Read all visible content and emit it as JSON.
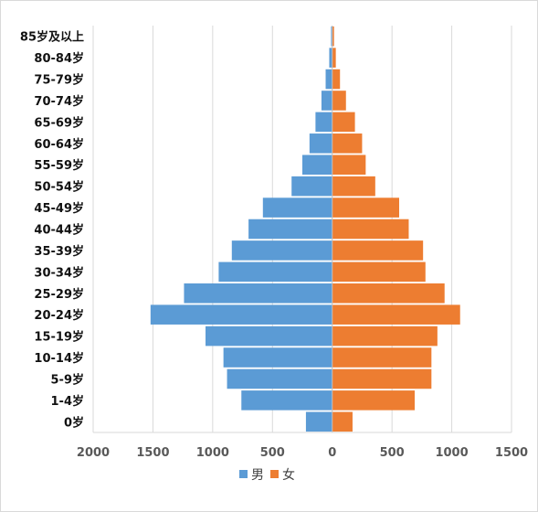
{
  "chart_data": {
    "type": "bar",
    "orientation": "horizontal",
    "categories": [
      "0岁",
      "1-4岁",
      "5-9岁",
      "10-14岁",
      "15-19岁",
      "20-24岁",
      "25-29岁",
      "30-34岁",
      "35-39岁",
      "40-44岁",
      "45-49岁",
      "50-54岁",
      "55-59岁",
      "60-64岁",
      "65-69岁",
      "70-74岁",
      "75-79岁",
      "80-84岁",
      "85岁及以上"
    ],
    "series": [
      {
        "name": "男",
        "color": "#5b9bd5",
        "values": [
          220,
          760,
          880,
          910,
          1060,
          1520,
          1240,
          950,
          840,
          700,
          580,
          340,
          250,
          190,
          140,
          90,
          55,
          25,
          10
        ]
      },
      {
        "name": "女",
        "color": "#ed7d31",
        "values": [
          170,
          690,
          830,
          830,
          880,
          1070,
          940,
          780,
          760,
          640,
          560,
          360,
          280,
          250,
          190,
          115,
          65,
          30,
          15
        ]
      }
    ],
    "xlim": [
      -2000,
      1500
    ],
    "x_ticks": [
      -2000,
      -1500,
      -1000,
      -500,
      0,
      500,
      1000,
      1500
    ],
    "x_tick_labels": [
      "2000",
      "1500",
      "1000",
      "500",
      "0",
      "500",
      "1000",
      "1500"
    ],
    "grid": true,
    "legend_position": "bottom"
  }
}
